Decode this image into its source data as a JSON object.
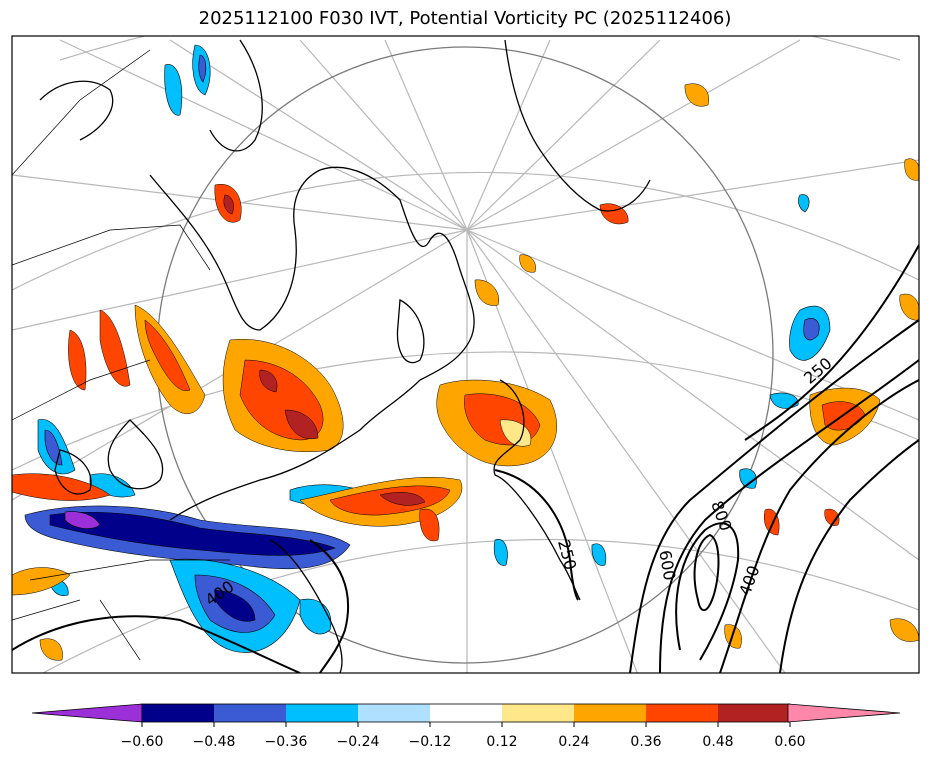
{
  "title": "2025112100 F030 IVT, Potential Vorticity PC (2025112406)",
  "colorbar": {
    "colors": [
      "#9b30d8",
      "#00008b",
      "#3a5bd4",
      "#00bfff",
      "#b0e0ff",
      "#ffffff",
      "#ffe78a",
      "#ffa500",
      "#ff4500",
      "#b22222",
      "#ff88aa"
    ],
    "tick_labels": [
      "−0.60",
      "−0.48",
      "−0.36",
      "−0.24",
      "−0.12",
      "0.12",
      "0.24",
      "0.36",
      "0.48",
      "0.60"
    ],
    "extend": "both"
  },
  "contour_labels": [
    "250",
    "250",
    "400",
    "400",
    "600",
    "800"
  ]
}
